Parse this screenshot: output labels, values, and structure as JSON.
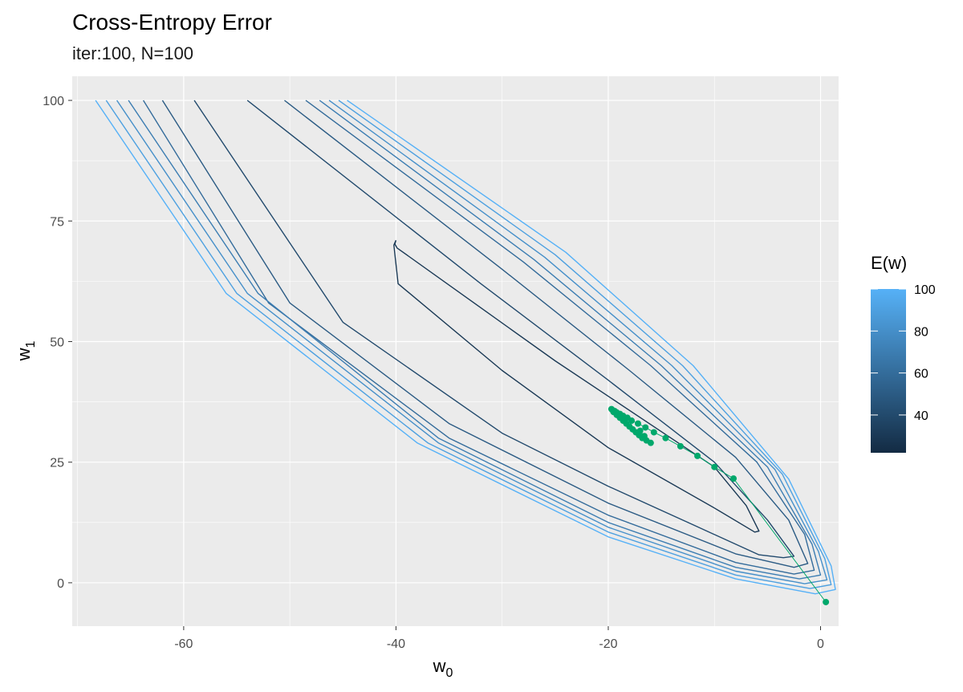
{
  "chart_data": {
    "type": "contour",
    "title": "Cross-Entropy Error",
    "subtitle": "iter:100, N=100",
    "xlabel": "w",
    "xlabel_sub": "0",
    "ylabel": "w",
    "ylabel_sub": "1",
    "xlim": [
      -70.5,
      1.7
    ],
    "ylim": [
      -9,
      105
    ],
    "x_ticks": [
      -60,
      -40,
      -20,
      0
    ],
    "y_ticks": [
      0,
      25,
      50,
      75,
      100
    ],
    "grid": true,
    "panel_background": "#ebebeb",
    "legend": {
      "title": "E(w)",
      "placement": "right",
      "range": [
        22,
        100
      ],
      "breaks": [
        40,
        60,
        80,
        100
      ],
      "low_color": "#132B43",
      "high_color": "#56B1F7"
    },
    "contour_levels": [
      {
        "level": 30,
        "polyline": [
          [
            -40.0,
            71.0
          ],
          [
            -40.1,
            70.2
          ],
          [
            -39.9,
            69.4
          ],
          [
            -25.0,
            46.0
          ],
          [
            -10.0,
            24.0
          ],
          [
            -7.0,
            16.0
          ],
          [
            -5.8,
            10.7
          ],
          [
            -6.2,
            10.5
          ],
          [
            -10.0,
            15.5
          ],
          [
            -20.0,
            28.0
          ],
          [
            -30.0,
            44.0
          ],
          [
            -39.8,
            62.0
          ],
          [
            -40.2,
            70.0
          ],
          [
            -40.0,
            71.0
          ]
        ]
      },
      {
        "level": 40,
        "polyline": [
          [
            -54.0,
            100.0
          ],
          [
            -32.0,
            62.0
          ],
          [
            -20.0,
            42.0
          ],
          [
            -10.0,
            25.0
          ],
          [
            -5.0,
            13.0
          ],
          [
            -2.5,
            5.5
          ],
          [
            -3.5,
            5.2
          ],
          [
            -5.8,
            5.8
          ],
          [
            -12.0,
            12.0
          ],
          [
            -20.0,
            20.0
          ],
          [
            -30.0,
            31.0
          ],
          [
            -45.0,
            54.0
          ],
          [
            -59.0,
            100.0
          ]
        ]
      },
      {
        "level": 50,
        "polyline": [
          [
            -50.5,
            100.0
          ],
          [
            -30.0,
            65.0
          ],
          [
            -18.0,
            44.0
          ],
          [
            -8.0,
            26.0
          ],
          [
            -3.0,
            13.0
          ],
          [
            -1.2,
            4.0
          ],
          [
            -2.5,
            3.2
          ],
          [
            -8.0,
            6.0
          ],
          [
            -20.0,
            16.5
          ],
          [
            -35.0,
            33.0
          ],
          [
            -50.0,
            58.0
          ],
          [
            -62.0,
            100.0
          ]
        ]
      },
      {
        "level": 60,
        "polyline": [
          [
            -48.5,
            100.0
          ],
          [
            -28.0,
            66.5
          ],
          [
            -16.0,
            45.0
          ],
          [
            -6.0,
            25.0
          ],
          [
            -1.5,
            10.0
          ],
          [
            -0.6,
            2.6
          ],
          [
            -2.5,
            1.8
          ],
          [
            -8.0,
            4.2
          ],
          [
            -20.0,
            14.0
          ],
          [
            -35.0,
            30.0
          ],
          [
            -52.0,
            58.0
          ],
          [
            -63.8,
            100.0
          ]
        ]
      },
      {
        "level": 70,
        "polyline": [
          [
            -47.2,
            100.0
          ],
          [
            -27.0,
            67.0
          ],
          [
            -15.0,
            45.0
          ],
          [
            -5.0,
            24.0
          ],
          [
            -0.8,
            8.0
          ],
          [
            0.0,
            1.6
          ],
          [
            -2.0,
            0.8
          ],
          [
            -8.0,
            3.2
          ],
          [
            -20.0,
            12.5
          ],
          [
            -36.0,
            30.0
          ],
          [
            -53.0,
            60.0
          ],
          [
            -65.2,
            100.0
          ]
        ]
      },
      {
        "level": 80,
        "polyline": [
          [
            -46.3,
            100.0
          ],
          [
            -26.0,
            67.5
          ],
          [
            -14.0,
            45.0
          ],
          [
            -4.3,
            23.5
          ],
          [
            -0.2,
            6.5
          ],
          [
            0.6,
            0.6
          ],
          [
            -1.5,
            -0.2
          ],
          [
            -8.0,
            2.4
          ],
          [
            -20.0,
            11.5
          ],
          [
            -36.0,
            29.0
          ],
          [
            -54.0,
            60.0
          ],
          [
            -66.3,
            100.0
          ]
        ]
      },
      {
        "level": 90,
        "polyline": [
          [
            -45.4,
            100.0
          ],
          [
            -25.0,
            68.0
          ],
          [
            -13.0,
            45.0
          ],
          [
            -3.6,
            22.5
          ],
          [
            0.4,
            5.0
          ],
          [
            1.0,
            -0.4
          ],
          [
            -1.0,
            -1.2
          ],
          [
            -8.0,
            1.6
          ],
          [
            -20.0,
            10.5
          ],
          [
            -37.0,
            29.0
          ],
          [
            -55.0,
            60.0
          ],
          [
            -67.3,
            100.0
          ]
        ]
      },
      {
        "level": 100,
        "polyline": [
          [
            -44.6,
            100.0
          ],
          [
            -24.0,
            68.5
          ],
          [
            -12.0,
            45.0
          ],
          [
            -3.0,
            21.5
          ],
          [
            1.0,
            3.5
          ],
          [
            1.4,
            -1.4
          ],
          [
            -0.5,
            -2.3
          ],
          [
            -8.0,
            0.8
          ],
          [
            -20.0,
            9.5
          ],
          [
            -38.0,
            29.0
          ],
          [
            -56.0,
            60.0
          ],
          [
            -68.3,
            100.0
          ]
        ]
      }
    ],
    "gd_path": {
      "color": "#00A86B",
      "points": [
        [
          0.5,
          -4.0
        ],
        [
          -8.2,
          21.6
        ],
        [
          -10.0,
          24.0
        ],
        [
          -11.6,
          26.3
        ],
        [
          -13.2,
          28.3
        ],
        [
          -14.6,
          30.0
        ],
        [
          -15.7,
          31.2
        ],
        [
          -16.5,
          32.2
        ],
        [
          -17.2,
          33.0
        ],
        [
          -17.8,
          33.6
        ],
        [
          -18.2,
          34.2
        ],
        [
          -18.6,
          34.6
        ],
        [
          -18.9,
          35.0
        ],
        [
          -19.2,
          35.3
        ],
        [
          -19.4,
          35.6
        ],
        [
          -19.6,
          35.8
        ],
        [
          -19.7,
          36.0
        ],
        [
          -19.5,
          35.4
        ],
        [
          -19.2,
          34.8
        ],
        [
          -18.9,
          34.2
        ],
        [
          -18.6,
          33.6
        ],
        [
          -18.3,
          33.0
        ],
        [
          -18.0,
          32.4
        ],
        [
          -17.7,
          31.8
        ],
        [
          -17.4,
          31.2
        ],
        [
          -17.1,
          30.6
        ],
        [
          -16.8,
          30.0
        ],
        [
          -16.4,
          29.5
        ],
        [
          -16.0,
          29.0
        ],
        [
          -16.6,
          30.4
        ],
        [
          -17.0,
          31.5
        ]
      ]
    }
  }
}
